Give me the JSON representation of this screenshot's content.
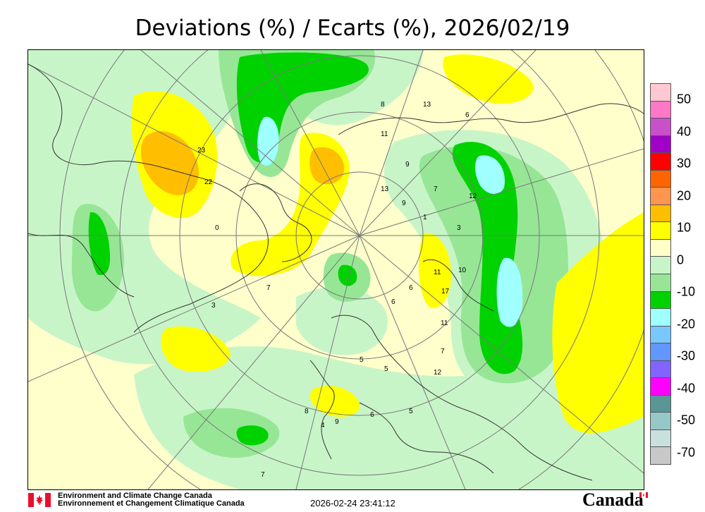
{
  "title": "Deviations (%) / Ecarts (%), 2026/02/19",
  "legend": {
    "labels": [
      "50",
      "40",
      "30",
      "20",
      "10",
      "0",
      "-10",
      "-20",
      "-30",
      "-40",
      "-50",
      "-70"
    ],
    "colors": [
      "#ffc8d2",
      "#ff78c8",
      "#c850c8",
      "#a000c8",
      "#ff0000",
      "#ff6400",
      "#ff9650",
      "#ffbe00",
      "#ffff00",
      "#ffffc8",
      "#c8f5c8",
      "#96e696",
      "#00d200",
      "#a0ffff",
      "#78c8ff",
      "#6496ff",
      "#8264ff",
      "#ff00ff",
      "#5a9696",
      "#96c8c8",
      "#c8e1dc",
      "#c8c8c8"
    ]
  },
  "map_labels": [
    "8",
    "13",
    "11",
    "9",
    "6",
    "12",
    "13",
    "7",
    "9",
    "1",
    "3",
    "11",
    "10",
    "17",
    "11",
    "6",
    "7",
    "12",
    "5",
    "5",
    "5",
    "6",
    "8",
    "4",
    "9",
    "6",
    "23",
    "22",
    "0",
    "7",
    "7",
    "3"
  ],
  "footer": {
    "org_en": "Environment and Climate Change Canada",
    "org_fr": "Environnement et Changement Climatique Canada",
    "timestamp": "2026-02-24 23:41:12",
    "wordmark": "Canada"
  }
}
